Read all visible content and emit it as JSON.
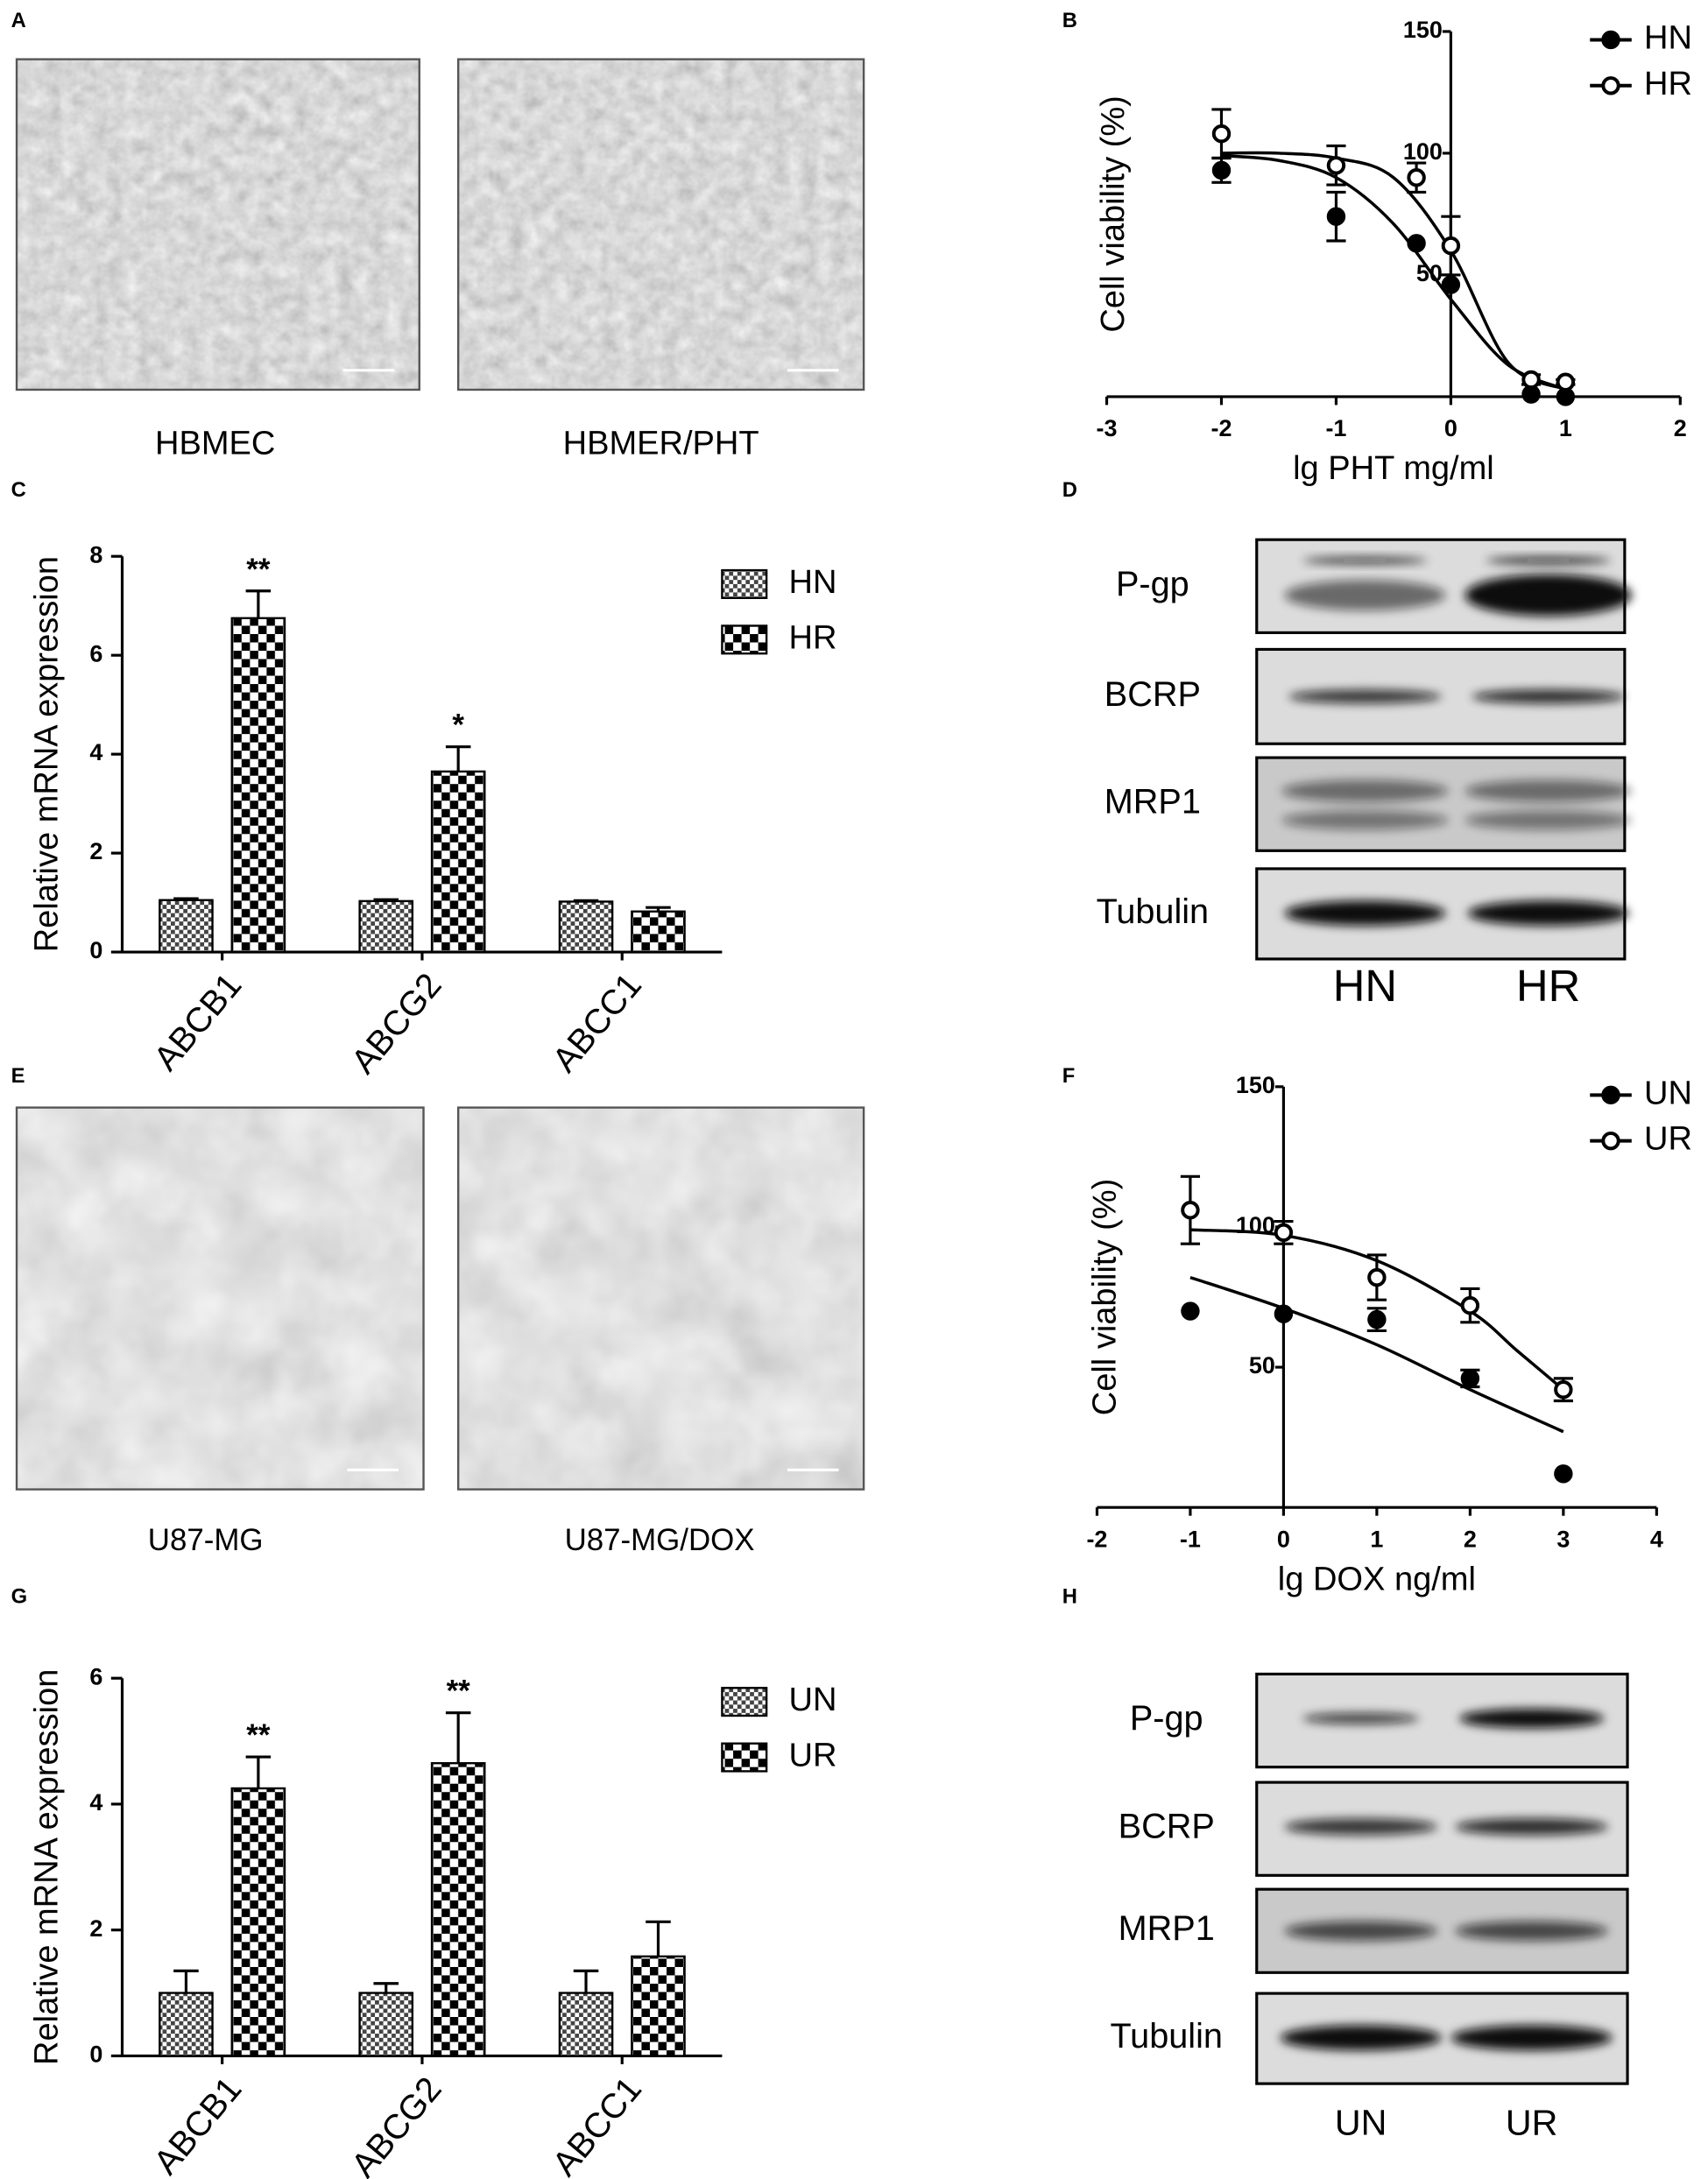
{
  "chart_data": [
    {
      "label": "B",
      "type": "line",
      "xlabel": "lg PHT mg/ml",
      "ylabel": "Cell viability (%)",
      "xlim": [
        -3,
        2
      ],
      "ylim": [
        0,
        150
      ],
      "xticks": [
        -3,
        -2,
        -1,
        0,
        1,
        2
      ],
      "yticks": [
        50,
        100,
        150
      ],
      "legend": "upper right",
      "series": [
        {
          "name": "HN",
          "marker": "filled",
          "color": "#000000",
          "x": [
            -2,
            -1,
            -0.3,
            0,
            0.7,
            1
          ],
          "values": [
            93,
            74,
            63,
            46,
            1,
            0
          ],
          "errors": [
            5,
            10,
            0,
            0,
            0,
            0
          ],
          "fit": {
            "x": [
              -2,
              -1.5,
              -1,
              -0.5,
              0,
              0.5,
              1
            ],
            "values": [
              99,
              97,
              90,
              71,
              40,
              13,
              3
            ]
          }
        },
        {
          "name": "HR",
          "marker": "open",
          "color": "#000000",
          "x": [
            -2,
            -1,
            -0.3,
            0,
            0.7,
            1
          ],
          "values": [
            108,
            95,
            90,
            62,
            7,
            6
          ],
          "errors": [
            10,
            8,
            6,
            12,
            2,
            1
          ],
          "fit": {
            "x": [
              -2,
              -1.5,
              -1,
              -0.5,
              0,
              0.5,
              1
            ],
            "values": [
              100,
              100,
              98,
              90,
              60,
              14,
              3
            ]
          }
        }
      ]
    },
    {
      "label": "C",
      "type": "bar",
      "ylabel": "Relative mRNA expression",
      "categories": [
        "ABCB1",
        "ABCG2",
        "ABCC1"
      ],
      "ylim": [
        0,
        8
      ],
      "yticks": [
        0,
        2,
        4,
        6,
        8
      ],
      "legend": "upper right",
      "series": [
        {
          "name": "HN",
          "pattern": "fine",
          "values": [
            1.05,
            1.03,
            1.02
          ],
          "errors": [
            0.03,
            0.03,
            0.02
          ]
        },
        {
          "name": "HR",
          "pattern": "coarse",
          "values": [
            6.75,
            3.65,
            0.82
          ],
          "errors": [
            0.55,
            0.5,
            0.08
          ],
          "significance": [
            "**",
            "*",
            null
          ]
        }
      ]
    },
    {
      "label": "F",
      "type": "line",
      "xlabel": "lg DOX ng/ml",
      "ylabel": "Cell viability (%)",
      "xlim": [
        -2,
        4
      ],
      "ylim": [
        0,
        150
      ],
      "xticks": [
        -2,
        -1,
        0,
        1,
        2,
        3,
        4
      ],
      "yticks": [
        50,
        100,
        150
      ],
      "legend": "upper right",
      "series": [
        {
          "name": "UN",
          "marker": "filled",
          "color": "#000000",
          "x": [
            -1,
            0,
            1,
            2,
            3
          ],
          "values": [
            70,
            69,
            67,
            46,
            12
          ],
          "errors": [
            0,
            0,
            4,
            3,
            0
          ],
          "fit": {
            "x": [
              -1,
              0,
              1,
              2,
              3
            ],
            "values": [
              82,
              71,
              58,
              42,
              27
            ]
          }
        },
        {
          "name": "UR",
          "marker": "open",
          "color": "#000000",
          "x": [
            -1,
            0,
            1,
            2,
            3
          ],
          "values": [
            106,
            98,
            82,
            72,
            42
          ],
          "errors": [
            12,
            4,
            8,
            6,
            4
          ],
          "fit": {
            "x": [
              -1,
              0,
              1,
              2,
              2.5,
              3
            ],
            "values": [
              99,
              97,
              88,
              70,
              56,
              42
            ]
          }
        }
      ]
    },
    {
      "label": "G",
      "type": "bar",
      "ylabel": "Relative mRNA expression",
      "categories": [
        "ABCB1",
        "ABCG2",
        "ABCC1"
      ],
      "ylim": [
        0,
        6
      ],
      "yticks": [
        0,
        2,
        4,
        6
      ],
      "legend": "upper right",
      "series": [
        {
          "name": "UN",
          "pattern": "fine",
          "values": [
            1,
            1,
            1
          ],
          "errors": [
            0.35,
            0.15,
            0.35
          ]
        },
        {
          "name": "UR",
          "pattern": "coarse",
          "values": [
            4.25,
            4.65,
            1.58
          ],
          "errors": [
            0.5,
            0.8,
            0.55
          ],
          "significance": [
            "**",
            "**",
            null
          ]
        }
      ]
    }
  ],
  "image_panels": [
    {
      "label": "A",
      "captions": [
        "HBMEC",
        "HBMER/PHT"
      ]
    },
    {
      "label": "E",
      "captions": [
        "U87-MG",
        "U87-MG/DOX"
      ]
    }
  ],
  "blots": [
    {
      "label": "D",
      "proteins": [
        "P-gp",
        "BCRP",
        "MRP1",
        "Tubulin"
      ],
      "lanes": [
        "HN",
        "HR"
      ]
    },
    {
      "label": "H",
      "proteins": [
        "P-gp",
        "BCRP",
        "MRP1",
        "Tubulin"
      ],
      "lanes": [
        "UN",
        "UR"
      ]
    }
  ]
}
